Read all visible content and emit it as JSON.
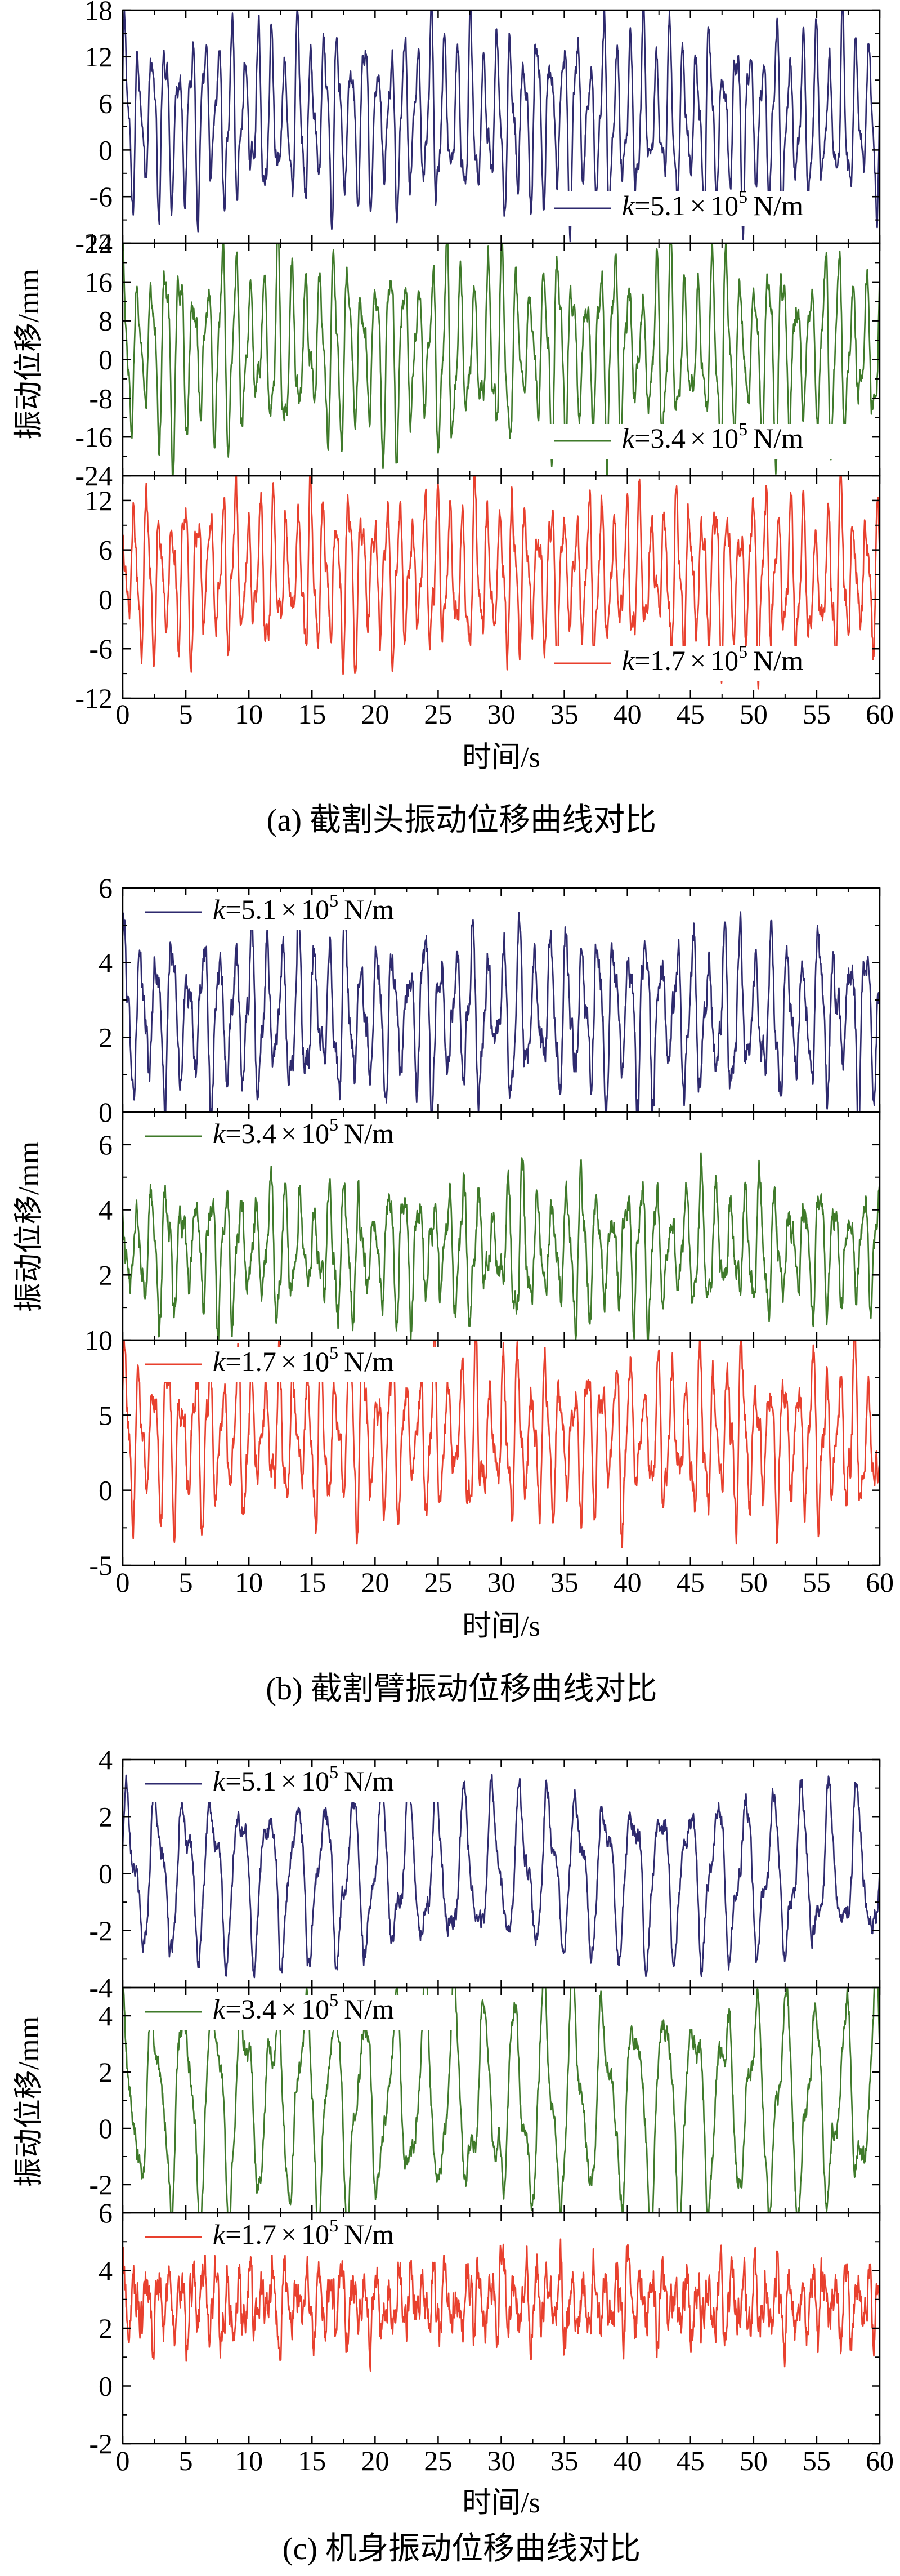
{
  "chart_data": [
    {
      "type": "line",
      "caption": "(a)  截割头振动位移曲线对比",
      "xlabel": "时间/s",
      "ylabel": "振动位移/mm",
      "xlim": [
        0,
        60
      ],
      "xticks": [
        "0",
        "5",
        "10",
        "15",
        "20",
        "25",
        "30",
        "35",
        "40",
        "45",
        "50",
        "55",
        "60"
      ],
      "subplots": [
        {
          "ylim": [
            -12,
            18
          ],
          "yticks": [
            "-12",
            "-6",
            "0",
            "6",
            "12",
            "18"
          ],
          "yticks_minor": [
            "-9",
            "-3",
            "3",
            "9",
            "15"
          ],
          "series": {
            "name": "k=5.1×10^5 N/m",
            "legend": {
              "k": "k",
              "eq": "=5.1",
              "times": "×",
              "base": "10",
              "exp": "5",
              "unit": "N/m"
            },
            "color": "#2e2a6e",
            "legend_pos": "bottom-right",
            "signal": {
              "mean": 4.0,
              "amplitude": 8.5,
              "freq": 0.95,
              "mod_freq": 0.37,
              "mod": 2.5,
              "noise": 1.5,
              "phase": 0.3
            }
          }
        },
        {
          "ylim": [
            -24,
            24
          ],
          "yticks": [
            "-24",
            "-16",
            "-8",
            "0",
            "8",
            "16",
            "24"
          ],
          "yticks_minor": [
            "-20",
            "-12",
            "-4",
            "4",
            "12",
            "20"
          ],
          "series": {
            "name": "k=3.4×10^5 N/m",
            "legend": {
              "k": "k",
              "eq": "=3.4",
              "times": "×",
              "base": "10",
              "exp": "5",
              "unit": "N/m"
            },
            "color": "#3f7a2a",
            "legend_pos": "bottom-right",
            "signal": {
              "mean": 2.0,
              "amplitude": 14.0,
              "freq": 0.9,
              "mod_freq": 0.23,
              "mod": 4.5,
              "noise": 2.5,
              "phase": 1.1
            }
          }
        },
        {
          "ylim": [
            -12,
            15
          ],
          "yticks": [
            "-12",
            "-6",
            "0",
            "6",
            "12"
          ],
          "yticks_minor": [
            "-9",
            "-3",
            "3",
            "9"
          ],
          "series": {
            "name": "k=1.7×10^5 N/m",
            "legend": {
              "k": "k",
              "eq": "=1.7",
              "times": "×",
              "base": "10",
              "exp": "5",
              "unit": "N/m"
            },
            "color": "#e8402e",
            "legend_pos": "bottom-right",
            "signal": {
              "mean": 3.0,
              "amplitude": 7.0,
              "freq": 1.0,
              "mod_freq": 0.31,
              "mod": 2.0,
              "noise": 1.8,
              "phase": 2.0
            }
          }
        }
      ]
    },
    {
      "type": "line",
      "caption": "(b)  截割臂振动位移曲线对比",
      "xlabel": "时间/s",
      "ylabel": "振动位移/mm",
      "xlim": [
        0,
        60
      ],
      "xticks": [
        "0",
        "5",
        "10",
        "15",
        "20",
        "25",
        "30",
        "35",
        "40",
        "45",
        "50",
        "55",
        "60"
      ],
      "subplots": [
        {
          "ylim": [
            0,
            6
          ],
          "yticks": [
            "0",
            "2",
            "4",
            "6"
          ],
          "yticks_minor": [
            "1",
            "3",
            "5"
          ],
          "series": {
            "name": "k=5.1×10^5 N/m",
            "legend": {
              "k": "k",
              "eq": "=5.1",
              "times": "×",
              "base": "10",
              "exp": "5",
              "unit": "N/m"
            },
            "color": "#2e2a6e",
            "legend_pos": "top-left",
            "signal": {
              "mean": 2.6,
              "amplitude": 1.6,
              "freq": 0.8,
              "mod_freq": 0.29,
              "mod": 0.5,
              "noise": 0.45,
              "phase": 0.7
            }
          }
        },
        {
          "ylim": [
            0,
            7
          ],
          "yticks": [
            "0",
            "2",
            "4",
            "6"
          ],
          "yticks_minor": [
            "1",
            "3",
            "5"
          ],
          "series": {
            "name": "k=3.4×10^5 N/m",
            "legend": {
              "k": "k",
              "eq": "=3.4",
              "times": "×",
              "base": "10",
              "exp": "5",
              "unit": "N/m"
            },
            "color": "#3f7a2a",
            "legend_pos": "top-left",
            "signal": {
              "mean": 2.8,
              "amplitude": 1.5,
              "freq": 0.85,
              "mod_freq": 0.21,
              "mod": 0.5,
              "noise": 0.45,
              "phase": 1.9
            }
          }
        },
        {
          "ylim": [
            -5,
            10
          ],
          "yticks": [
            "-5",
            "0",
            "5",
            "10"
          ],
          "yticks_minor": [
            "-2.5",
            "2.5",
            "7.5"
          ],
          "series": {
            "name": "k=1.7×10^5 N/m",
            "legend": {
              "k": "k",
              "eq": "=1.7",
              "times": "×",
              "base": "10",
              "exp": "5",
              "unit": "N/m"
            },
            "color": "#e8402e",
            "legend_pos": "top-left",
            "signal": {
              "mean": 3.5,
              "amplitude": 3.8,
              "freq": 0.9,
              "mod_freq": 0.33,
              "mod": 1.4,
              "noise": 1.1,
              "phase": 0.4
            }
          }
        }
      ]
    },
    {
      "type": "line",
      "caption": "(c)  机身振动位移曲线对比",
      "xlabel": "时间/s",
      "ylabel": "振动位移/mm",
      "xlim": [
        0,
        60
      ],
      "xticks": [
        "0",
        "5",
        "10",
        "15",
        "20",
        "25",
        "30",
        "35",
        "40",
        "45",
        "50",
        "55",
        "60"
      ],
      "subplots": [
        {
          "ylim": [
            -4,
            4
          ],
          "yticks": [
            "-4",
            "-2",
            "0",
            "2",
            "4"
          ],
          "yticks_minor": [
            "-3",
            "-1",
            "1",
            "3"
          ],
          "series": {
            "name": "k=5.1×10^5 N/m",
            "legend": {
              "k": "k",
              "eq": "=5.1",
              "times": "×",
              "base": "10",
              "exp": "5",
              "unit": "N/m"
            },
            "color": "#2e2a6e",
            "legend_pos": "top-left",
            "signal": {
              "mean": 0.0,
              "amplitude": 2.3,
              "freq": 0.45,
              "mod_freq": 0.9,
              "mod": 0.6,
              "noise": 0.35,
              "phase": 0.2
            }
          }
        },
        {
          "ylim": [
            -3,
            5
          ],
          "yticks": [
            "-2",
            "0",
            "2",
            "4"
          ],
          "yticks_minor": [
            "-1",
            "1",
            "3"
          ],
          "series": {
            "name": "k=3.4×10^5 N/m",
            "legend": {
              "k": "k",
              "eq": "=3.4",
              "times": "×",
              "base": "10",
              "exp": "5",
              "unit": "N/m"
            },
            "color": "#3f7a2a",
            "legend_pos": "top-left",
            "signal": {
              "mean": 1.0,
              "amplitude": 3.0,
              "freq": 0.42,
              "mod_freq": 0.95,
              "mod": 0.8,
              "noise": 0.4,
              "phase": 1.3
            }
          }
        },
        {
          "ylim": [
            -2,
            6
          ],
          "yticks": [
            "-2",
            "0",
            "2",
            "4",
            "6"
          ],
          "yticks_minor": [
            "-1",
            "1",
            "3",
            "5"
          ],
          "series": {
            "name": "k=1.7×10^5 N/m",
            "legend": {
              "k": "k",
              "eq": "=1.7",
              "times": "×",
              "base": "10",
              "exp": "5",
              "unit": "N/m"
            },
            "color": "#e8402e",
            "legend_pos": "top-left",
            "signal": {
              "mean": 2.9,
              "amplitude": 0.9,
              "freq": 1.1,
              "mod_freq": 0.4,
              "mod": 0.4,
              "noise": 0.75,
              "phase": 0.9
            }
          }
        }
      ]
    }
  ]
}
